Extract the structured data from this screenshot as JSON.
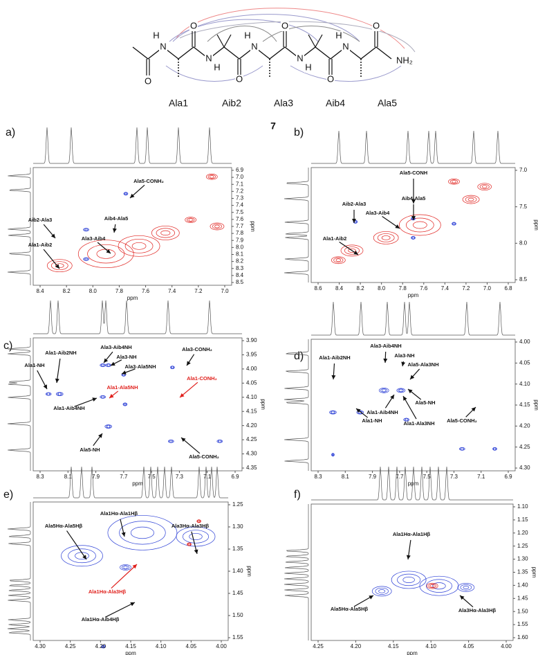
{
  "molecule": {
    "atom_labels": [
      "O",
      "H",
      "N",
      "O",
      "N",
      "H",
      "O",
      "H",
      "N",
      "O",
      "N",
      "H",
      "O",
      "H",
      "N",
      "O",
      "NH₂"
    ],
    "residues": [
      "Ala1",
      "Aib2",
      "Ala3",
      "Aib4",
      "Ala5"
    ],
    "compound_number": "7"
  },
  "panels": [
    {
      "label": "a)",
      "xlabel": "ppm",
      "ylabel": "ppm",
      "xticks": [
        "8.4",
        "8.2",
        "8.0",
        "7.8",
        "7.6",
        "7.4",
        "7.2",
        "7.0"
      ],
      "yticks": [
        "6.9",
        "7.0",
        "7.1",
        "7.2",
        "7.3",
        "7.4",
        "7.5",
        "7.6",
        "7.7",
        "7.8",
        "7.9",
        "8.0",
        "8.1",
        "8.2",
        "8.3",
        "8.4",
        "8.5"
      ],
      "annotations": [
        {
          "text": "Ala5-CONH₂"
        },
        {
          "text": "Aib4-Ala5"
        },
        {
          "text": "Ala3-Aib4"
        },
        {
          "text": "Aib2-Ala3"
        },
        {
          "text": "Ala1-Aib2"
        }
      ]
    },
    {
      "label": "b)",
      "xlabel": "ppm",
      "ylabel": "ppm",
      "xticks": [
        "8.6",
        "8.4",
        "8.2",
        "8.0",
        "7.8",
        "7.6",
        "7.4",
        "7.2",
        "7.0",
        "6.8"
      ],
      "yticks": [
        "7.0",
        "7.5",
        "8.0",
        "8.5"
      ],
      "annotations": [
        {
          "text": "Ala5-CONH"
        },
        {
          "text": "Aib4-Ala5"
        },
        {
          "text": "Ala3-Aib4"
        },
        {
          "text": "Aib2-Ala3"
        },
        {
          "text": "Ala1-Aib2"
        }
      ]
    },
    {
      "label": "c)",
      "xlabel": "ppm",
      "ylabel": "ppm",
      "xticks": [
        "8.3",
        "8.1",
        "7.9",
        "7.7",
        "7.5",
        "7.3",
        "7.1",
        "6.9"
      ],
      "yticks": [
        "3.90",
        "3.95",
        "4.00",
        "4.05",
        "4.10",
        "4.15",
        "4.20",
        "4.25",
        "4.30",
        "4.35"
      ],
      "annotations": [
        {
          "text": "Ala1-NH"
        },
        {
          "text": "Ala1-Aib2NH"
        },
        {
          "text": "Ala3-Aib4NH"
        },
        {
          "text": "Ala3-NH"
        },
        {
          "text": "Ala3-Ala5NH"
        },
        {
          "text": "Ala3-CONH₂"
        },
        {
          "text": "Ala1-Ala5NH",
          "color": "#e0201c"
        },
        {
          "text": "Ala1-CONH₂",
          "color": "#e0201c"
        },
        {
          "text": "Ala1-Aib4NH"
        },
        {
          "text": "Ala5-NH"
        },
        {
          "text": "Ala5-CONH₂"
        }
      ]
    },
    {
      "label": "d)",
      "xlabel": "ppm",
      "ylabel": "ppm",
      "xticks": [
        "8.3",
        "8.1",
        "7.9",
        "7.7",
        "7.5",
        "7.3",
        "7.1",
        "6.9"
      ],
      "yticks": [
        "4.00",
        "4.05",
        "4.10",
        "4.15",
        "4.20",
        "4.25",
        "4.30"
      ],
      "annotations": [
        {
          "text": "Ala1-Aib2NH"
        },
        {
          "text": "Ala3-Aib4NH"
        },
        {
          "text": "Ala3-NH"
        },
        {
          "text": "Ala5-Ala3NH"
        },
        {
          "text": "Ala1-Aib4NH"
        },
        {
          "text": "Ala1-NH"
        },
        {
          "text": "Ala1-Ala3NH"
        },
        {
          "text": "Ala5-NH"
        },
        {
          "text": "Ala5-CONH₂"
        }
      ]
    },
    {
      "label": "e)",
      "xlabel": "ppm",
      "ylabel": "ppm",
      "xticks": [
        "4.30",
        "4.25",
        "4.20",
        "4.15",
        "4.10",
        "4.05",
        "4.00"
      ],
      "yticks": [
        "1.25",
        "1.30",
        "1.35",
        "1.40",
        "1.45",
        "1.50",
        "1.55"
      ],
      "annotations": [
        {
          "text": "Ala5Hα-Ala5Hβ"
        },
        {
          "text": "Ala1Hα-Ala1Hβ"
        },
        {
          "text": "Ala3Hα-Ala3Hβ"
        },
        {
          "text": "Ala1Hα-Ala3Hβ",
          "color": "#e0201c"
        },
        {
          "text": "Ala1Hα-Aib4Hβ"
        }
      ]
    },
    {
      "label": "f)",
      "xlabel": "ppm",
      "ylabel": "ppm",
      "xticks": [
        "4.25",
        "4.20",
        "4.15",
        "4.10",
        "4.05",
        "4.00"
      ],
      "yticks": [
        "1.10",
        "1.15",
        "1.20",
        "1.25",
        "1.30",
        "1.35",
        "1.40",
        "1.45",
        "1.50",
        "1.55",
        "1.60"
      ],
      "annotations": [
        {
          "text": "Ala1Hα-Ala1Hβ"
        },
        {
          "text": "Ala5Hα-Ala5Hβ"
        },
        {
          "text": "Ala3Hα-Ala3Hβ"
        }
      ]
    }
  ]
}
